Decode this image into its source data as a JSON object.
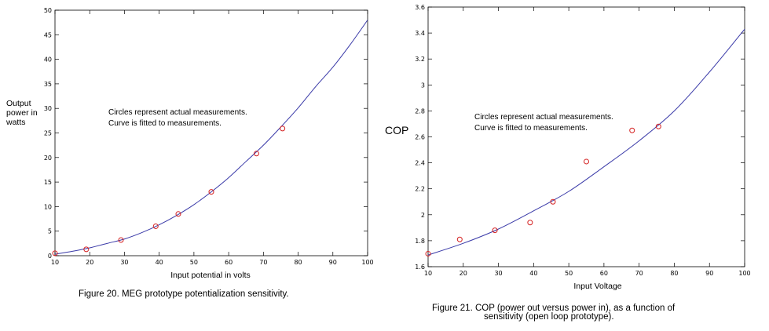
{
  "colors": {
    "curve": "#3a3aa8",
    "marker": "#d42020",
    "axis": "#000000"
  },
  "chart_data": [
    {
      "type": "scatter",
      "xlabel": "Input potential in volts",
      "ylabel_lines": [
        "Output",
        "power in",
        "watts"
      ],
      "annotation_lines": [
        "Circles represent actual measurements.",
        "Curve is fitted to measurements."
      ],
      "caption": "Figure 20.  MEG prototype potentialization sensitivity.",
      "xlim": [
        10,
        100
      ],
      "ylim": [
        0,
        50
      ],
      "xticks": [
        10,
        20,
        30,
        40,
        50,
        60,
        70,
        80,
        90,
        100
      ],
      "yticks": [
        0,
        5,
        10,
        15,
        20,
        25,
        30,
        35,
        40,
        45,
        50
      ],
      "series": [
        {
          "kind": "measurements",
          "x": [
            10,
            19,
            29,
            39,
            45.5,
            55,
            68,
            75.5
          ],
          "y": [
            0.5,
            1.3,
            3.2,
            6.0,
            8.5,
            13.0,
            20.8,
            25.9
          ]
        },
        {
          "kind": "fitted-curve",
          "x": [
            10,
            15,
            20,
            25,
            30,
            35,
            40,
            45,
            50,
            55,
            60,
            65,
            70,
            75,
            80,
            85,
            90,
            95,
            100
          ],
          "y": [
            0.3,
            0.9,
            1.6,
            2.5,
            3.4,
            4.7,
            6.3,
            8.2,
            10.4,
            13.0,
            15.9,
            19.2,
            22.5,
            26.2,
            30.1,
            34.4,
            38.4,
            43.0,
            48.0
          ]
        }
      ]
    },
    {
      "type": "scatter",
      "xlabel": "Input Voltage",
      "ylabel": "COP",
      "annotation_lines": [
        "Circles represent actual measurements.",
        "Curve is fitted to measurements."
      ],
      "caption_lines": [
        "Figure 21.  COP (power out versus power in), as a function of",
        "sensitivity (open loop prototype)."
      ],
      "xlim": [
        10,
        100
      ],
      "ylim": [
        1.6,
        3.6
      ],
      "xticks": [
        10,
        20,
        30,
        40,
        50,
        60,
        70,
        80,
        90,
        100
      ],
      "yticks": [
        "1.6",
        "1.8",
        "2",
        "2.2",
        "2.4",
        "2.6",
        "2.8",
        "3",
        "3.2",
        "3.4",
        "3.6"
      ],
      "series": [
        {
          "kind": "measurements",
          "x": [
            10,
            19,
            29,
            39,
            45.5,
            55,
            68,
            75.5
          ],
          "y": [
            1.7,
            1.81,
            1.88,
            1.94,
            2.1,
            2.41,
            2.65,
            2.68
          ]
        },
        {
          "kind": "fitted-curve",
          "x": [
            10,
            20,
            30,
            40,
            50,
            60,
            70,
            80,
            90,
            100
          ],
          "y": [
            1.69,
            1.78,
            1.89,
            2.03,
            2.18,
            2.37,
            2.57,
            2.8,
            3.1,
            3.43
          ]
        }
      ]
    }
  ]
}
